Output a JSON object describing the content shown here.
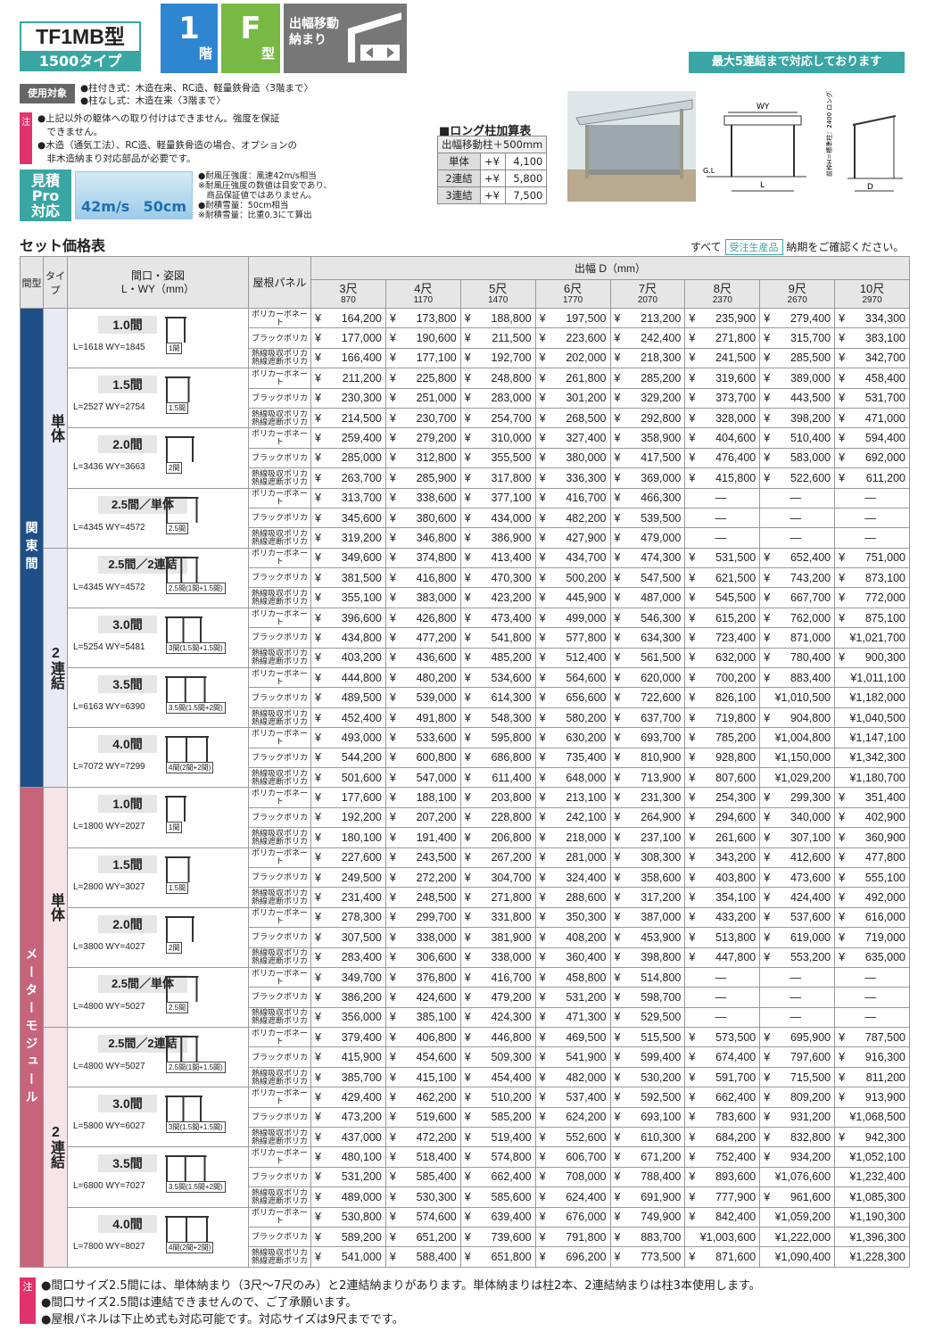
{
  "header": {
    "model": "TF1MB型",
    "subtitle": "1500タイプ",
    "floor_num": "1",
    "floor_unit": "階",
    "type_letter": "F",
    "type_unit": "型",
    "move": "出幅移動\n納まり",
    "max_connect": "最大5連結まで対応しております"
  },
  "usage": {
    "tag": "使用対象",
    "lines": [
      "●柱付き式：木造在来、RC造、軽量鉄骨造〈3階まで〉",
      "●柱なし式：木造在来〈3階まで〉"
    ]
  },
  "note1": {
    "tag": "注",
    "lines": [
      "●上記以外の躯体への取り付けはできません。強度を保証",
      "　できません。",
      "●木造（通気工法）、RC造、軽量鉄骨造の場合、オプションの",
      "　非木造納まり対応部品が必要です。"
    ]
  },
  "mitsumori": {
    "label": "見積\nPro\n対応"
  },
  "wind": {
    "v1": "42m/s",
    "v2": "50cm",
    "notes": [
      "●耐風圧強度：風速42m/s相当",
      "※耐風圧強度の数値は目安であり、",
      "　商品保証値ではありません。",
      "●耐積雪量：50cm相当",
      "※耐積雪量：比重0.3にて算出"
    ]
  },
  "long_post": {
    "title": "■ロング柱加算表",
    "header": "出幅移動柱＋500mm",
    "rows": [
      {
        "k": "単体",
        "p": "+¥",
        "v": "4,100"
      },
      {
        "k": "2連結",
        "p": "+¥",
        "v": "5,800"
      },
      {
        "k": "3連結",
        "p": "+¥",
        "v": "7,500"
      }
    ]
  },
  "diagram": {
    "wy": "WY",
    "l": "L",
    "d": "D",
    "gl": "G.L",
    "h": "前枠H＝標準柱：2400\nロング柱：2900"
  },
  "set_table": {
    "title": "セット価格表",
    "note_pre": "すべて",
    "note_badge": "受注生産品",
    "note_post": "納期をご確認ください。",
    "h_span": "間型",
    "h_type": "タイプ",
    "h_size": "間口・姿図\nL・WY（mm）",
    "h_panel": "屋根パネル",
    "h_depth": "出幅 D（mm）",
    "depths": [
      {
        "s": "3尺",
        "mm": "870"
      },
      {
        "s": "4尺",
        "mm": "1170"
      },
      {
        "s": "5尺",
        "mm": "1470"
      },
      {
        "s": "6尺",
        "mm": "1770"
      },
      {
        "s": "7尺",
        "mm": "2070"
      },
      {
        "s": "8尺",
        "mm": "2370"
      },
      {
        "s": "9尺",
        "mm": "2670"
      },
      {
        "s": "10尺",
        "mm": "2970"
      }
    ],
    "panels": [
      "ポリカーボネート",
      "ブラックポリカ",
      "熱線吸収ポリカ\n熱線遮断ポリカ"
    ],
    "yen": "¥",
    "zones": [
      {
        "name": "関東間",
        "groups": [
          {
            "type": "単体",
            "sizes": [
              {
                "name": "1.0間",
                "lw": "L=1618 WY=1845",
                "dg": "1間",
                "rows": [
                  [
                    "164,200",
                    "173,800",
                    "188,800",
                    "197,500",
                    "213,200",
                    "235,900",
                    "279,400",
                    "334,300"
                  ],
                  [
                    "177,000",
                    "190,600",
                    "211,500",
                    "223,600",
                    "242,400",
                    "271,800",
                    "315,700",
                    "383,100"
                  ],
                  [
                    "166,400",
                    "177,100",
                    "192,700",
                    "202,000",
                    "218,300",
                    "241,500",
                    "285,500",
                    "342,700"
                  ]
                ]
              },
              {
                "name": "1.5間",
                "lw": "L=2527 WY=2754",
                "dg": "1.5間",
                "rows": [
                  [
                    "211,200",
                    "225,800",
                    "248,800",
                    "261,800",
                    "285,200",
                    "319,600",
                    "389,000",
                    "458,400"
                  ],
                  [
                    "230,300",
                    "251,000",
                    "283,000",
                    "301,200",
                    "329,200",
                    "373,700",
                    "443,500",
                    "531,700"
                  ],
                  [
                    "214,500",
                    "230,700",
                    "254,700",
                    "268,500",
                    "292,800",
                    "328,000",
                    "398,200",
                    "471,000"
                  ]
                ]
              },
              {
                "name": "2.0間",
                "lw": "L=3436 WY=3663",
                "dg": "2間",
                "rows": [
                  [
                    "259,400",
                    "279,200",
                    "310,000",
                    "327,400",
                    "358,900",
                    "404,600",
                    "510,400",
                    "594,400"
                  ],
                  [
                    "285,000",
                    "312,800",
                    "355,500",
                    "380,000",
                    "417,500",
                    "476,400",
                    "583,000",
                    "692,000"
                  ],
                  [
                    "263,700",
                    "285,900",
                    "317,800",
                    "336,300",
                    "369,000",
                    "415,800",
                    "522,600",
                    "611,200"
                  ]
                ]
              },
              {
                "name": "2.5間／単体",
                "lw": "L=4345 WY=4572",
                "dg": "2.5間",
                "rows": [
                  [
                    "313,700",
                    "338,600",
                    "377,100",
                    "416,700",
                    "466,300",
                    "—",
                    "—",
                    "—"
                  ],
                  [
                    "345,600",
                    "380,600",
                    "434,000",
                    "482,200",
                    "539,500",
                    "—",
                    "—",
                    "—"
                  ],
                  [
                    "319,200",
                    "346,800",
                    "386,900",
                    "427,900",
                    "479,000",
                    "—",
                    "—",
                    "—"
                  ]
                ]
              }
            ]
          },
          {
            "type": "2連結",
            "sizes": [
              {
                "name": "2.5間／2連結",
                "lw": "L=4345 WY=4572",
                "dg": "2.5間(1間+1.5間)",
                "rows": [
                  [
                    "349,600",
                    "374,800",
                    "413,400",
                    "434,700",
                    "474,300",
                    "531,500",
                    "652,400",
                    "751,000"
                  ],
                  [
                    "381,500",
                    "416,800",
                    "470,300",
                    "500,200",
                    "547,500",
                    "621,500",
                    "743,200",
                    "873,100"
                  ],
                  [
                    "355,100",
                    "383,000",
                    "423,200",
                    "445,900",
                    "487,000",
                    "545,500",
                    "667,700",
                    "772,000"
                  ]
                ]
              },
              {
                "name": "3.0間",
                "lw": "L=5254 WY=5481",
                "dg": "3間(1.5間+1.5間)",
                "rows": [
                  [
                    "396,600",
                    "426,800",
                    "473,400",
                    "499,000",
                    "546,300",
                    "615,200",
                    "762,000",
                    "875,100"
                  ],
                  [
                    "434,800",
                    "477,200",
                    "541,800",
                    "577,800",
                    "634,300",
                    "723,400",
                    "871,000",
                    "¥1,021,700"
                  ],
                  [
                    "403,200",
                    "436,600",
                    "485,200",
                    "512,400",
                    "561,500",
                    "632,000",
                    "780,400",
                    "900,300"
                  ]
                ]
              },
              {
                "name": "3.5間",
                "lw": "L=6163 WY=6390",
                "dg": "3.5間(1.5間+2間)",
                "rows": [
                  [
                    "444,800",
                    "480,200",
                    "534,600",
                    "564,600",
                    "620,000",
                    "700,200",
                    "883,400",
                    "¥1,011,100"
                  ],
                  [
                    "489,500",
                    "539,000",
                    "614,300",
                    "656,600",
                    "722,600",
                    "826,100",
                    "¥1,010,500",
                    "¥1,182,000"
                  ],
                  [
                    "452,400",
                    "491,800",
                    "548,300",
                    "580,200",
                    "637,700",
                    "719,800",
                    "904,800",
                    "¥1,040,500"
                  ]
                ]
              },
              {
                "name": "4.0間",
                "lw": "L=7072 WY=7299",
                "dg": "4間(2間+2間)",
                "rows": [
                  [
                    "493,000",
                    "533,600",
                    "595,800",
                    "630,200",
                    "693,700",
                    "785,200",
                    "¥1,004,800",
                    "¥1,147,100"
                  ],
                  [
                    "544,200",
                    "600,800",
                    "686,800",
                    "735,400",
                    "810,900",
                    "928,800",
                    "¥1,150,000",
                    "¥1,342,300"
                  ],
                  [
                    "501,600",
                    "547,000",
                    "611,400",
                    "648,000",
                    "713,900",
                    "807,600",
                    "¥1,029,200",
                    "¥1,180,700"
                  ]
                ]
              }
            ]
          }
        ]
      },
      {
        "name": "メーターモジュール",
        "groups": [
          {
            "type": "単体",
            "sizes": [
              {
                "name": "1.0間",
                "lw": "L=1800 WY=2027",
                "dg": "1間",
                "rows": [
                  [
                    "177,600",
                    "188,100",
                    "203,800",
                    "213,100",
                    "231,300",
                    "254,300",
                    "299,300",
                    "351,400"
                  ],
                  [
                    "192,200",
                    "207,200",
                    "228,800",
                    "242,100",
                    "264,900",
                    "294,600",
                    "340,000",
                    "402,900"
                  ],
                  [
                    "180,100",
                    "191,400",
                    "206,800",
                    "218,000",
                    "237,100",
                    "261,600",
                    "307,100",
                    "360,900"
                  ]
                ]
              },
              {
                "name": "1.5間",
                "lw": "L=2800 WY=3027",
                "dg": "1.5間",
                "rows": [
                  [
                    "227,600",
                    "243,500",
                    "267,200",
                    "281,000",
                    "308,300",
                    "343,200",
                    "412,600",
                    "477,800"
                  ],
                  [
                    "249,500",
                    "272,200",
                    "304,700",
                    "324,400",
                    "358,600",
                    "403,800",
                    "473,600",
                    "555,100"
                  ],
                  [
                    "231,400",
                    "248,500",
                    "271,800",
                    "288,600",
                    "317,200",
                    "354,100",
                    "424,400",
                    "492,000"
                  ]
                ]
              },
              {
                "name": "2.0間",
                "lw": "L=3800 WY=4027",
                "dg": "2間",
                "rows": [
                  [
                    "278,300",
                    "299,700",
                    "331,800",
                    "350,300",
                    "387,000",
                    "433,200",
                    "537,600",
                    "616,000"
                  ],
                  [
                    "307,500",
                    "338,000",
                    "381,900",
                    "408,200",
                    "453,900",
                    "513,800",
                    "619,000",
                    "719,000"
                  ],
                  [
                    "283,400",
                    "306,600",
                    "338,000",
                    "360,400",
                    "398,800",
                    "447,800",
                    "553,200",
                    "635,000"
                  ]
                ]
              },
              {
                "name": "2.5間／単体",
                "lw": "L=4800 WY=5027",
                "dg": "2.5間",
                "rows": [
                  [
                    "349,700",
                    "376,800",
                    "416,700",
                    "458,800",
                    "514,800",
                    "—",
                    "—",
                    "—"
                  ],
                  [
                    "386,200",
                    "424,600",
                    "479,200",
                    "531,200",
                    "598,700",
                    "—",
                    "—",
                    "—"
                  ],
                  [
                    "356,000",
                    "385,100",
                    "424,300",
                    "471,300",
                    "529,500",
                    "—",
                    "—",
                    "—"
                  ]
                ]
              }
            ]
          },
          {
            "type": "2連結",
            "sizes": [
              {
                "name": "2.5間／2連結",
                "lw": "L=4800 WY=5027",
                "dg": "2.5間(1間+1.5間)",
                "rows": [
                  [
                    "379,400",
                    "406,800",
                    "446,800",
                    "469,500",
                    "515,500",
                    "573,500",
                    "695,900",
                    "787,500"
                  ],
                  [
                    "415,900",
                    "454,600",
                    "509,300",
                    "541,900",
                    "599,400",
                    "674,400",
                    "797,600",
                    "916,300"
                  ],
                  [
                    "385,700",
                    "415,100",
                    "454,400",
                    "482,000",
                    "530,200",
                    "591,700",
                    "715,500",
                    "811,200"
                  ]
                ]
              },
              {
                "name": "3.0間",
                "lw": "L=5800 WY=6027",
                "dg": "3間(1.5間+1.5間)",
                "rows": [
                  [
                    "429,400",
                    "462,200",
                    "510,200",
                    "537,400",
                    "592,500",
                    "662,400",
                    "809,200",
                    "913,900"
                  ],
                  [
                    "473,200",
                    "519,600",
                    "585,200",
                    "624,200",
                    "693,100",
                    "783,600",
                    "931,200",
                    "¥1,068,500"
                  ],
                  [
                    "437,000",
                    "472,200",
                    "519,400",
                    "552,600",
                    "610,300",
                    "684,200",
                    "832,800",
                    "942,300"
                  ]
                ]
              },
              {
                "name": "3.5間",
                "lw": "L=6800 WY=7027",
                "dg": "3.5間(1.5間+2間)",
                "rows": [
                  [
                    "480,100",
                    "518,400",
                    "574,800",
                    "606,700",
                    "671,200",
                    "752,400",
                    "934,200",
                    "¥1,052,100"
                  ],
                  [
                    "531,200",
                    "585,400",
                    "662,400",
                    "708,000",
                    "788,400",
                    "893,600",
                    "¥1,076,600",
                    "¥1,232,400"
                  ],
                  [
                    "489,000",
                    "530,300",
                    "585,600",
                    "624,400",
                    "691,900",
                    "777,900",
                    "961,600",
                    "¥1,085,300"
                  ]
                ]
              },
              {
                "name": "4.0間",
                "lw": "L=7800 WY=8027",
                "dg": "4間(2間+2間)",
                "rows": [
                  [
                    "530,800",
                    "574,600",
                    "639,400",
                    "676,000",
                    "749,900",
                    "842,400",
                    "¥1,059,200",
                    "¥1,190,300"
                  ],
                  [
                    "589,200",
                    "651,200",
                    "739,600",
                    "791,800",
                    "883,700",
                    "¥1,003,600",
                    "¥1,222,000",
                    "¥1,396,300"
                  ],
                  [
                    "541,000",
                    "588,400",
                    "651,800",
                    "696,200",
                    "773,500",
                    "871,600",
                    "¥1,090,400",
                    "¥1,228,300"
                  ]
                ]
              }
            ]
          }
        ]
      }
    ]
  },
  "bottom_notes": {
    "tag": "注",
    "lines": [
      "●間口サイズ2.5間には、単体納まり（3尺〜7尺のみ）と2連結納まりがあります。単体納まりは柱2本、2連結納まりは柱3本使用します。",
      "●間口サイズ2.5間は連結できませんので、ご了承願います。",
      "●屋根パネルは下止め式も対応可能です。対応サイズは9尺までです。"
    ]
  },
  "colors": {
    "accent": "#3aa6a3",
    "kanto": "#1e4f86",
    "meter": "#c7647a",
    "note": "#e0336d"
  }
}
